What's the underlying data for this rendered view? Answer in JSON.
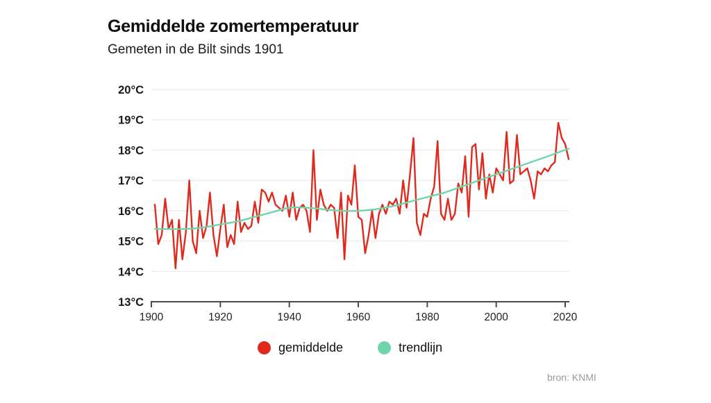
{
  "header": {
    "title": "Gemiddelde zomertemperatuur",
    "subtitle": "Gemeten in de Bilt sinds 1901"
  },
  "source_label": "bron: KNMI",
  "legend": {
    "items": [
      {
        "label": "gemiddelde",
        "color": "#e0291d"
      },
      {
        "label": "trendlijn",
        "color": "#6fd4aa"
      }
    ]
  },
  "colors": {
    "series_red": "#e0291d",
    "trend_teal": "#6fd4aa",
    "gridline": "#ececec",
    "axis": "#4a4a4a",
    "tick_label": "#1a1a1a",
    "background": "#ffffff",
    "source_gray": "#9b9b9b"
  },
  "chart_data": {
    "type": "line",
    "title": "Gemiddelde zomertemperatuur",
    "subtitle": "Gemeten in de Bilt sinds 1901",
    "source": "bron: KNMI",
    "xlabel": "",
    "ylabel": "",
    "xlim": [
      1900,
      2022
    ],
    "ylim": [
      13,
      20
    ],
    "grid": "horizontal",
    "legend_position": "bottom",
    "x_ticks": [
      1900,
      1920,
      1940,
      1960,
      1980,
      2000,
      2020
    ],
    "y_ticks": [
      13,
      14,
      15,
      16,
      17,
      18,
      19,
      20
    ],
    "y_tick_suffix": "°C",
    "series": [
      {
        "name": "gemiddelde",
        "type": "line",
        "color": "#e0291d",
        "year_start": 1901,
        "year_end": 2021,
        "values": [
          16.2,
          14.9,
          15.2,
          16.4,
          15.4,
          15.7,
          14.1,
          15.7,
          14.4,
          15.3,
          17.0,
          15.0,
          14.6,
          16.0,
          15.1,
          15.5,
          16.6,
          15.2,
          14.5,
          15.4,
          16.2,
          14.8,
          15.2,
          14.9,
          16.3,
          15.3,
          15.6,
          15.4,
          15.5,
          16.3,
          15.6,
          16.7,
          16.6,
          16.3,
          16.6,
          16.2,
          16.1,
          16.0,
          16.5,
          15.8,
          16.6,
          15.7,
          16.1,
          16.2,
          16.0,
          15.3,
          18.0,
          15.7,
          16.7,
          16.2,
          16.0,
          16.2,
          16.1,
          15.1,
          16.6,
          14.4,
          16.5,
          16.2,
          17.5,
          15.8,
          15.7,
          14.6,
          15.2,
          16.0,
          15.1,
          15.9,
          16.2,
          15.9,
          16.3,
          16.2,
          16.4,
          15.9,
          17.0,
          16.1,
          17.2,
          18.4,
          15.6,
          15.2,
          15.9,
          15.8,
          16.4,
          16.8,
          18.3,
          15.9,
          15.7,
          16.4,
          15.7,
          15.9,
          16.9,
          16.6,
          17.8,
          15.8,
          18.1,
          18.2,
          16.7,
          17.9,
          16.4,
          17.2,
          16.6,
          17.4,
          17.2,
          17.0,
          18.6,
          16.9,
          17.0,
          18.5,
          17.2,
          17.3,
          17.4,
          17.0,
          16.4,
          17.3,
          17.2,
          17.4,
          17.3,
          17.5,
          17.6,
          18.9,
          18.4,
          18.2,
          17.7
        ]
      },
      {
        "name": "trendlijn",
        "type": "smooth-line",
        "color": "#6fd4aa",
        "x": [
          1901,
          1910,
          1915,
          1920,
          1925,
          1930,
          1935,
          1940,
          1945,
          1950,
          1955,
          1960,
          1965,
          1970,
          1975,
          1980,
          1985,
          1990,
          1995,
          2000,
          2005,
          2010,
          2015,
          2021
        ],
        "values": [
          15.4,
          15.4,
          15.45,
          15.55,
          15.65,
          15.8,
          15.95,
          16.1,
          16.1,
          16.05,
          16.0,
          16.0,
          16.05,
          16.15,
          16.3,
          16.45,
          16.6,
          16.8,
          17.0,
          17.2,
          17.4,
          17.6,
          17.8,
          18.05
        ]
      }
    ]
  }
}
